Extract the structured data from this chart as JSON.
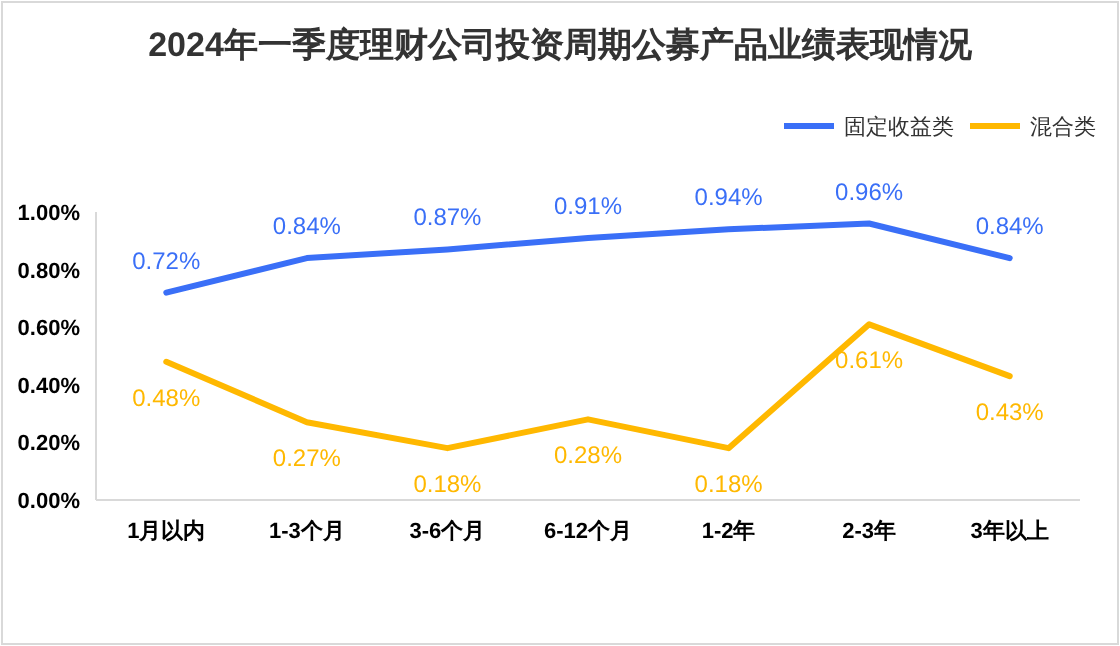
{
  "chart_data": {
    "type": "line",
    "title": "2024年一季度理财公司投资周期公募产品业绩表现情况",
    "categories": [
      "1月以内",
      "1-3个月",
      "3-6个月",
      "6-12个月",
      "1-2年",
      "2-3年",
      "3年以上"
    ],
    "series": [
      {
        "name": "固定收益类",
        "color": "#3a6ff7",
        "values": [
          0.72,
          0.84,
          0.87,
          0.91,
          0.94,
          0.96,
          0.84
        ],
        "value_labels": [
          "0.72%",
          "0.84%",
          "0.87%",
          "0.91%",
          "0.94%",
          "0.96%",
          "0.84%"
        ]
      },
      {
        "name": "混合类",
        "color": "#ffb800",
        "values": [
          0.48,
          0.27,
          0.18,
          0.28,
          0.18,
          0.61,
          0.43
        ],
        "value_labels": [
          "0.48%",
          "0.27%",
          "0.18%",
          "0.28%",
          "0.18%",
          "0.61%",
          "0.43%"
        ]
      }
    ],
    "ylim": [
      0,
      1.0
    ],
    "yticks": [
      {
        "value": 0,
        "label": "0.00%"
      },
      {
        "value": 0.2,
        "label": "0.20%"
      },
      {
        "value": 0.4,
        "label": "0.40%"
      },
      {
        "value": 0.6,
        "label": "0.60%"
      },
      {
        "value": 0.8,
        "label": "0.80%"
      },
      {
        "value": 1.0,
        "label": "1.00%"
      }
    ],
    "grid": false,
    "legend": "top right",
    "marker": "none",
    "line_style": "solid"
  }
}
